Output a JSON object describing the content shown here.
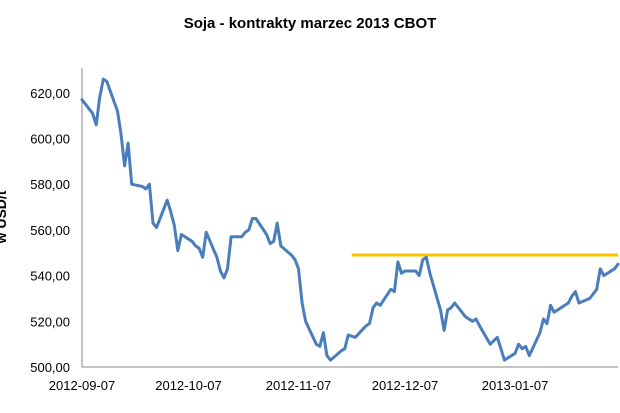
{
  "chart_data": {
    "type": "line",
    "title": "Soja - kontrakty marzec 2013 CBOT",
    "ylabel": "w USD/t",
    "xlabel": "",
    "ylim": [
      500,
      630
    ],
    "yticks": [
      "500,00",
      "520,00",
      "540,00",
      "560,00",
      "580,00",
      "600,00",
      "620,00"
    ],
    "ytick_values": [
      500,
      520,
      540,
      560,
      580,
      600,
      620
    ],
    "xlim": [
      "2012-09-07",
      "2013-02-05"
    ],
    "xticks": [
      "2012-09-07",
      "2012-10-07",
      "2012-11-07",
      "2012-12-07",
      "2013-01-07"
    ],
    "grid": false,
    "legend": "none",
    "colors": {
      "series": "#4A7EBB",
      "level": "#FFC000"
    },
    "series": [
      {
        "values": [
          [
            "2012-09-07",
            617
          ],
          [
            "2012-09-10",
            611
          ],
          [
            "2012-09-11",
            606
          ],
          [
            "2012-09-12",
            618
          ],
          [
            "2012-09-13",
            626
          ],
          [
            "2012-09-14",
            625
          ],
          [
            "2012-09-17",
            612
          ],
          [
            "2012-09-18",
            602
          ],
          [
            "2012-09-19",
            588
          ],
          [
            "2012-09-20",
            598
          ],
          [
            "2012-09-21",
            580
          ],
          [
            "2012-09-24",
            579
          ],
          [
            "2012-09-25",
            578
          ],
          [
            "2012-09-26",
            580
          ],
          [
            "2012-09-27",
            563
          ],
          [
            "2012-09-28",
            561
          ],
          [
            "2012-10-01",
            573
          ],
          [
            "2012-10-02",
            568
          ],
          [
            "2012-10-03",
            562
          ],
          [
            "2012-10-04",
            551
          ],
          [
            "2012-10-05",
            558
          ],
          [
            "2012-10-08",
            555
          ],
          [
            "2012-10-09",
            553
          ],
          [
            "2012-10-10",
            552
          ],
          [
            "2012-10-11",
            548
          ],
          [
            "2012-10-12",
            559
          ],
          [
            "2012-10-15",
            548
          ],
          [
            "2012-10-16",
            542
          ],
          [
            "2012-10-17",
            539
          ],
          [
            "2012-10-18",
            543
          ],
          [
            "2012-10-19",
            557
          ],
          [
            "2012-10-22",
            557
          ],
          [
            "2012-10-23",
            559
          ],
          [
            "2012-10-24",
            560
          ],
          [
            "2012-10-25",
            565
          ],
          [
            "2012-10-26",
            565
          ],
          [
            "2012-10-29",
            558
          ],
          [
            "2012-10-30",
            554
          ],
          [
            "2012-10-31",
            555
          ],
          [
            "2012-11-01",
            563
          ],
          [
            "2012-11-02",
            553
          ],
          [
            "2012-11-05",
            549
          ],
          [
            "2012-11-06",
            547
          ],
          [
            "2012-11-07",
            543
          ],
          [
            "2012-11-08",
            528
          ],
          [
            "2012-11-09",
            520
          ],
          [
            "2012-11-12",
            510
          ],
          [
            "2012-11-13",
            509
          ],
          [
            "2012-11-14",
            515
          ],
          [
            "2012-11-15",
            505
          ],
          [
            "2012-11-16",
            503
          ],
          [
            "2012-11-19",
            507
          ],
          [
            "2012-11-20",
            508
          ],
          [
            "2012-11-21",
            514
          ],
          [
            "2012-11-23",
            513
          ],
          [
            "2012-11-26",
            518
          ],
          [
            "2012-11-27",
            519
          ],
          [
            "2012-11-28",
            526
          ],
          [
            "2012-11-29",
            528
          ],
          [
            "2012-11-30",
            527
          ],
          [
            "2012-12-03",
            534
          ],
          [
            "2012-12-04",
            533
          ],
          [
            "2012-12-05",
            546
          ],
          [
            "2012-12-06",
            541
          ],
          [
            "2012-12-07",
            542
          ],
          [
            "2012-12-10",
            542
          ],
          [
            "2012-12-11",
            540
          ],
          [
            "2012-12-12",
            547
          ],
          [
            "2012-12-13",
            548
          ],
          [
            "2012-12-14",
            541
          ],
          [
            "2012-12-17",
            525
          ],
          [
            "2012-12-18",
            516
          ],
          [
            "2012-12-19",
            525
          ],
          [
            "2012-12-20",
            526
          ],
          [
            "2012-12-21",
            528
          ],
          [
            "2012-12-24",
            522
          ],
          [
            "2012-12-26",
            520
          ],
          [
            "2012-12-27",
            521
          ],
          [
            "2012-12-28",
            518
          ],
          [
            "2012-12-31",
            510
          ],
          [
            "2013-01-02",
            513
          ],
          [
            "2013-01-03",
            508
          ],
          [
            "2013-01-04",
            503
          ],
          [
            "2013-01-07",
            506
          ],
          [
            "2013-01-08",
            510
          ],
          [
            "2013-01-09",
            508
          ],
          [
            "2013-01-10",
            509
          ],
          [
            "2013-01-11",
            505
          ],
          [
            "2013-01-14",
            515
          ],
          [
            "2013-01-15",
            521
          ],
          [
            "2013-01-16",
            519
          ],
          [
            "2013-01-17",
            527
          ],
          [
            "2013-01-18",
            524
          ],
          [
            "2013-01-22",
            528
          ],
          [
            "2013-01-23",
            531
          ],
          [
            "2013-01-24",
            533
          ],
          [
            "2013-01-25",
            528
          ],
          [
            "2013-01-28",
            530
          ],
          [
            "2013-01-29",
            532
          ],
          [
            "2013-01-30",
            534
          ],
          [
            "2013-01-31",
            543
          ],
          [
            "2013-02-01",
            540
          ],
          [
            "2013-02-04",
            543
          ],
          [
            "2013-02-05",
            545
          ]
        ]
      }
    ],
    "reference_lines": [
      {
        "y": 549,
        "x_start": "2012-11-22",
        "x_end": "2013-02-05"
      }
    ]
  }
}
